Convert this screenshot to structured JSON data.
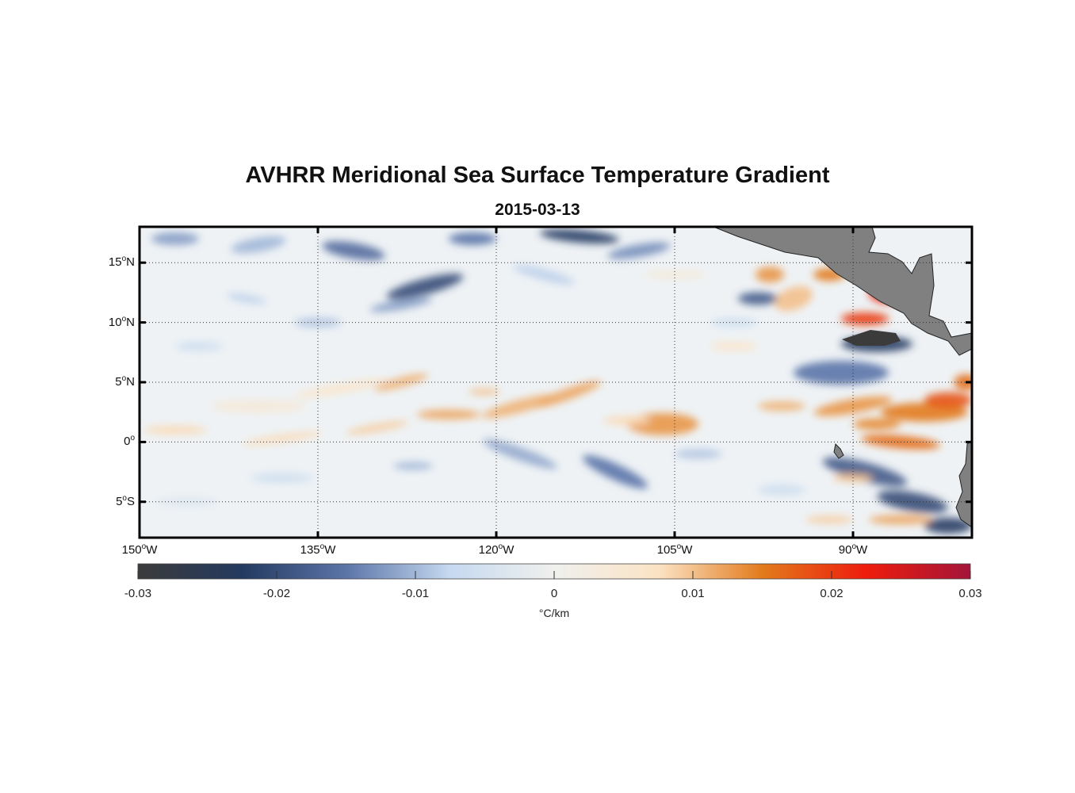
{
  "title": "AVHRR Meridional Sea Surface Temperature Gradient",
  "subtitle": "2015-03-13",
  "map": {
    "lon_range": [
      -150,
      -80
    ],
    "lat_range": [
      -8,
      18
    ],
    "lat_ticks": [
      {
        "value": 15,
        "deg": "15",
        "hemi": "N"
      },
      {
        "value": 10,
        "deg": "10",
        "hemi": "N"
      },
      {
        "value": 5,
        "deg": "5",
        "hemi": "N"
      },
      {
        "value": 0,
        "deg": "0",
        "hemi": ""
      },
      {
        "value": -5,
        "deg": "5",
        "hemi": "S"
      }
    ],
    "lon_ticks": [
      {
        "value": -150,
        "deg": "150",
        "hemi": "W"
      },
      {
        "value": -135,
        "deg": "135",
        "hemi": "W"
      },
      {
        "value": -120,
        "deg": "120",
        "hemi": "W"
      },
      {
        "value": -105,
        "deg": "105",
        "hemi": "W"
      },
      {
        "value": -90,
        "deg": "90",
        "hemi": "W"
      }
    ],
    "land_color": "#808080"
  },
  "colorbar": {
    "min": -0.03,
    "max": 0.03,
    "ticks": [
      "-0.03",
      "-0.02",
      "-0.01",
      "0",
      "0.01",
      "0.02",
      "0.03"
    ],
    "tick_values": [
      -0.03,
      -0.02,
      -0.01,
      0,
      0.01,
      0.02,
      0.03
    ],
    "unit": "°C/km",
    "colors": [
      "#3b3b3b",
      "#243a60",
      "#5b75a8",
      "#c6d9f0",
      "#f0f0ee",
      "#fbe3c4",
      "#e27b1c",
      "#ee1c0c",
      "#a3153a"
    ]
  }
}
